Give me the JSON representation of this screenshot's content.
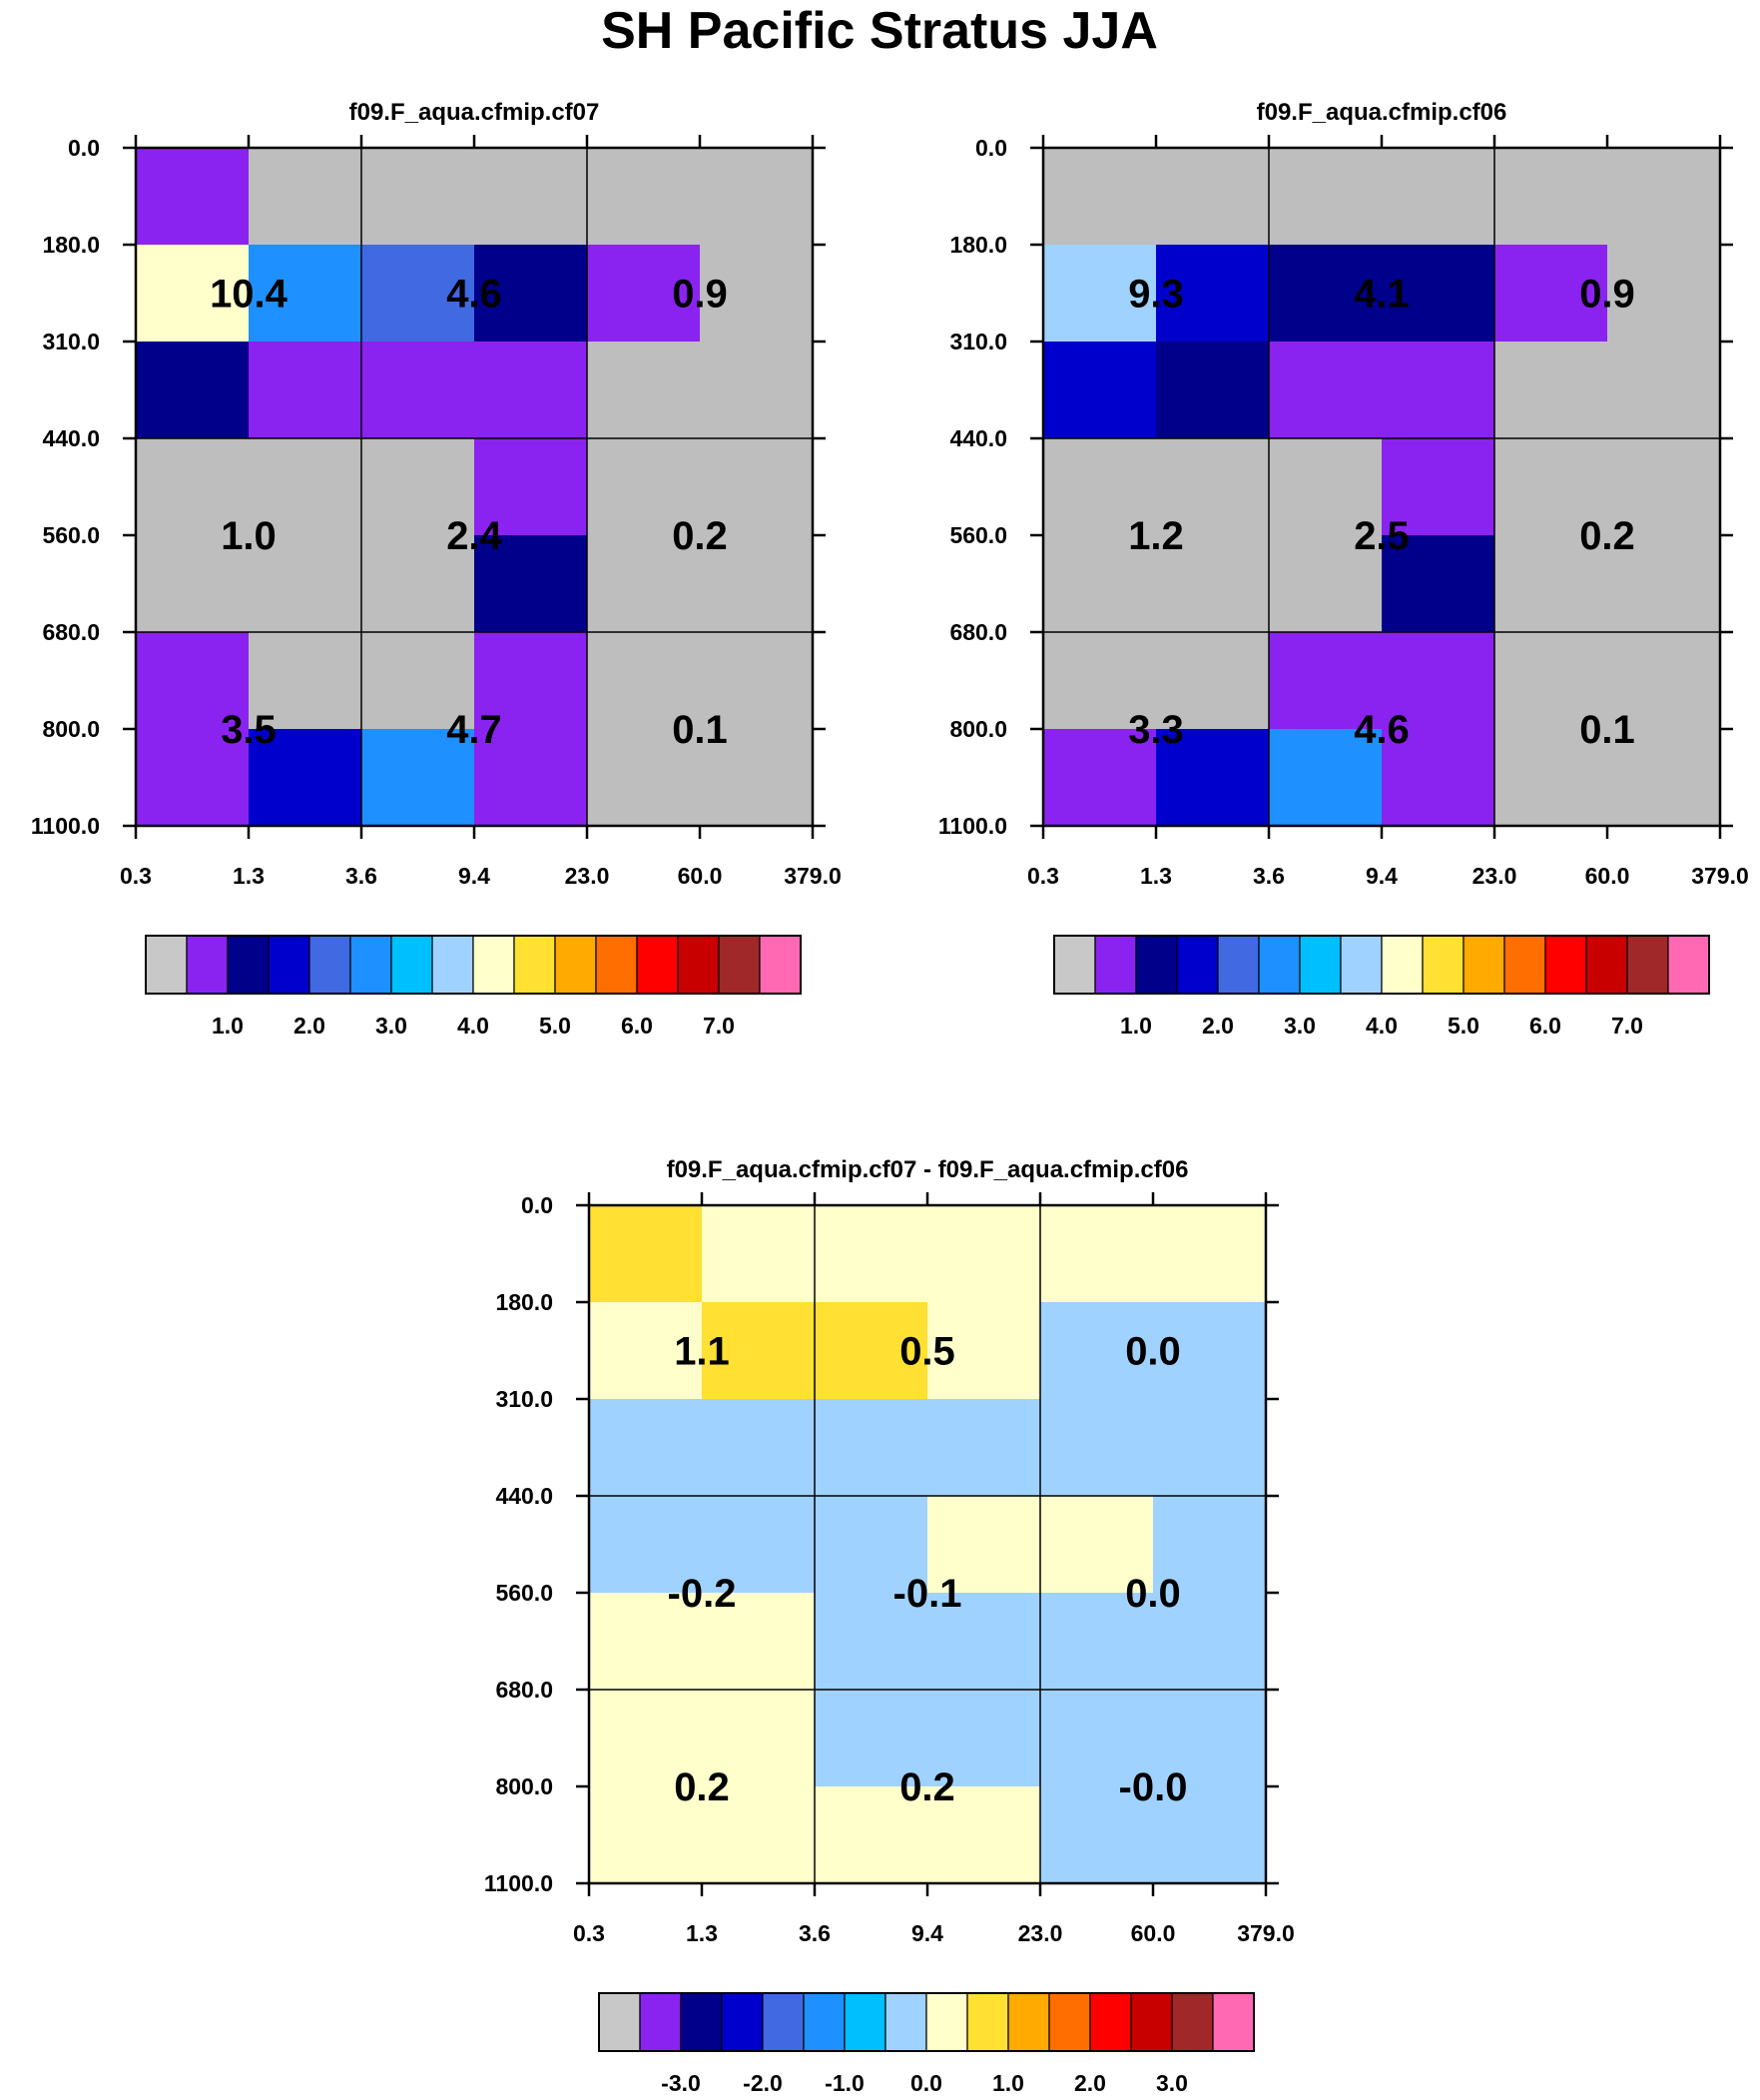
{
  "title": "SH Pacific Stratus JJA",
  "chart_data": [
    {
      "type": "heatmap",
      "title": "f09.F_aqua.cfmip.cf07",
      "x_ticks": [
        "0.3",
        "1.3",
        "3.6",
        "9.4",
        "23.0",
        "60.0",
        "379.0"
      ],
      "y_ticks": [
        "0.0",
        "180.0",
        "310.0",
        "440.0",
        "560.0",
        "680.0",
        "800.0",
        "1100.0"
      ],
      "cell_colors": [
        [
          "#8a23f0",
          "#bebebe",
          "#bebebe",
          "#bebebe",
          "#bebebe",
          "#bebebe"
        ],
        [
          "#ffffcc",
          "#1e90ff",
          "#4169e1",
          "#00008b",
          "#8a23f0",
          "#bebebe"
        ],
        [
          "#00008b",
          "#8a23f0",
          "#8a23f0",
          "#8a23f0",
          "#bebebe",
          "#bebebe"
        ],
        [
          "#bebebe",
          "#bebebe",
          "#bebebe",
          "#8a23f0",
          "#bebebe",
          "#bebebe"
        ],
        [
          "#bebebe",
          "#bebebe",
          "#bebebe",
          "#00008b",
          "#bebebe",
          "#bebebe"
        ],
        [
          "#8a23f0",
          "#bebebe",
          "#bebebe",
          "#8a23f0",
          "#bebebe",
          "#bebebe"
        ],
        [
          "#8a23f0",
          "#0000cd",
          "#1e90ff",
          "#8a23f0",
          "#bebebe",
          "#bebebe"
        ]
      ],
      "box_values": [
        [
          "10.4",
          "4.6",
          "0.9"
        ],
        [
          "1.0",
          "2.4",
          "0.2"
        ],
        [
          "3.5",
          "4.7",
          "0.1"
        ]
      ],
      "colorbar": {
        "colors": [
          "#c8c8c8",
          "#8a23f0",
          "#00008b",
          "#0000cd",
          "#4169e1",
          "#1e90ff",
          "#00bfff",
          "#a0d2ff",
          "#ffffcc",
          "#ffe033",
          "#ffaa00",
          "#ff6e00",
          "#ff0000",
          "#c80000",
          "#a02828",
          "#ff69b4"
        ],
        "labels": [
          "1.0",
          "2.0",
          "3.0",
          "4.0",
          "5.0",
          "6.0",
          "7.0"
        ]
      }
    },
    {
      "type": "heatmap",
      "title": "f09.F_aqua.cfmip.cf06",
      "x_ticks": [
        "0.3",
        "1.3",
        "3.6",
        "9.4",
        "23.0",
        "60.0",
        "379.0"
      ],
      "y_ticks": [
        "0.0",
        "180.0",
        "310.0",
        "440.0",
        "560.0",
        "680.0",
        "800.0",
        "1100.0"
      ],
      "cell_colors": [
        [
          "#bebebe",
          "#bebebe",
          "#bebebe",
          "#bebebe",
          "#bebebe",
          "#bebebe"
        ],
        [
          "#a0d2ff",
          "#0000cd",
          "#00008b",
          "#00008b",
          "#8a23f0",
          "#bebebe"
        ],
        [
          "#0000cd",
          "#00008b",
          "#8a23f0",
          "#8a23f0",
          "#bebebe",
          "#bebebe"
        ],
        [
          "#bebebe",
          "#bebebe",
          "#bebebe",
          "#8a23f0",
          "#bebebe",
          "#bebebe"
        ],
        [
          "#bebebe",
          "#bebebe",
          "#bebebe",
          "#00008b",
          "#bebebe",
          "#bebebe"
        ],
        [
          "#bebebe",
          "#bebebe",
          "#8a23f0",
          "#8a23f0",
          "#bebebe",
          "#bebebe"
        ],
        [
          "#8a23f0",
          "#0000cd",
          "#1e90ff",
          "#8a23f0",
          "#bebebe",
          "#bebebe"
        ]
      ],
      "box_values": [
        [
          "9.3",
          "4.1",
          "0.9"
        ],
        [
          "1.2",
          "2.5",
          "0.2"
        ],
        [
          "3.3",
          "4.6",
          "0.1"
        ]
      ],
      "colorbar": {
        "colors": [
          "#c8c8c8",
          "#8a23f0",
          "#00008b",
          "#0000cd",
          "#4169e1",
          "#1e90ff",
          "#00bfff",
          "#a0d2ff",
          "#ffffcc",
          "#ffe033",
          "#ffaa00",
          "#ff6e00",
          "#ff0000",
          "#c80000",
          "#a02828",
          "#ff69b4"
        ],
        "labels": [
          "1.0",
          "2.0",
          "3.0",
          "4.0",
          "5.0",
          "6.0",
          "7.0"
        ]
      }
    },
    {
      "type": "heatmap",
      "title": "f09.F_aqua.cfmip.cf07 - f09.F_aqua.cfmip.cf06",
      "x_ticks": [
        "0.3",
        "1.3",
        "3.6",
        "9.4",
        "23.0",
        "60.0",
        "379.0"
      ],
      "y_ticks": [
        "0.0",
        "180.0",
        "310.0",
        "440.0",
        "560.0",
        "680.0",
        "800.0",
        "1100.0"
      ],
      "cell_colors": [
        [
          "#ffe033",
          "#ffffcc",
          "#ffffcc",
          "#ffffcc",
          "#ffffcc",
          "#ffffcc"
        ],
        [
          "#ffffcc",
          "#ffe033",
          "#ffe033",
          "#ffffcc",
          "#a0d2ff",
          "#a0d2ff"
        ],
        [
          "#a0d2ff",
          "#a0d2ff",
          "#a0d2ff",
          "#a0d2ff",
          "#a0d2ff",
          "#a0d2ff"
        ],
        [
          "#a0d2ff",
          "#a0d2ff",
          "#a0d2ff",
          "#ffffcc",
          "#ffffcc",
          "#a0d2ff"
        ],
        [
          "#ffffcc",
          "#ffffcc",
          "#a0d2ff",
          "#a0d2ff",
          "#a0d2ff",
          "#a0d2ff"
        ],
        [
          "#ffffcc",
          "#ffffcc",
          "#a0d2ff",
          "#a0d2ff",
          "#a0d2ff",
          "#a0d2ff"
        ],
        [
          "#ffffcc",
          "#ffffcc",
          "#ffffcc",
          "#ffffcc",
          "#a0d2ff",
          "#a0d2ff"
        ]
      ],
      "box_values": [
        [
          "1.1",
          "0.5",
          "0.0"
        ],
        [
          "-0.2",
          "-0.1",
          "0.0"
        ],
        [
          "0.2",
          "0.2",
          "-0.0"
        ]
      ],
      "colorbar": {
        "colors": [
          "#c8c8c8",
          "#8a23f0",
          "#00008b",
          "#0000cd",
          "#4169e1",
          "#1e90ff",
          "#00bfff",
          "#a0d2ff",
          "#ffffcc",
          "#ffe033",
          "#ffaa00",
          "#ff6e00",
          "#ff0000",
          "#c80000",
          "#a02828",
          "#ff69b4"
        ],
        "labels": [
          "-3.0",
          "-2.0",
          "-1.0",
          "0.0",
          "1.0",
          "2.0",
          "3.0"
        ]
      }
    }
  ]
}
